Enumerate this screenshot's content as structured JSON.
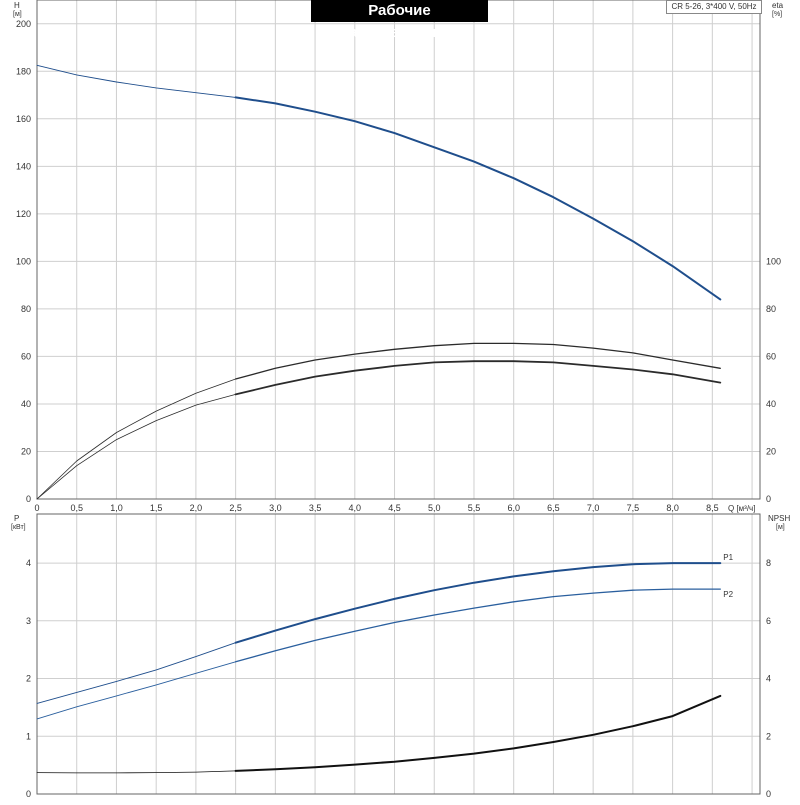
{
  "title": "Рабочие характеристики",
  "model_label": "CR 5-26, 3*400 V, 50Hz",
  "colors": {
    "head": "#1f4e8c",
    "eta": "#2b2b2b",
    "power_p1": "#1f4e8c",
    "power_p2": "#2a5f9e",
    "npsh": "#111111",
    "grid": "#cfcfcf",
    "axis": "#666666"
  },
  "chart_data": [
    {
      "type": "line",
      "panel": "top",
      "left_axis": {
        "label": "H",
        "unit": "[м]",
        "ylim": [
          0,
          210
        ],
        "ticks": [
          "0",
          "20",
          "40",
          "60",
          "80",
          "100",
          "120",
          "140",
          "160",
          "180",
          "200"
        ]
      },
      "right_axis": {
        "label": "eta",
        "unit": "[%]",
        "ylim": [
          0,
          210
        ],
        "ticks": [
          "0",
          "20",
          "40",
          "60",
          "80",
          "100"
        ]
      },
      "x_axis": {
        "label": "Q [м³/ч]",
        "xlim": [
          0,
          9.1
        ],
        "ticks": [
          "0",
          "0,5",
          "1,0",
          "1,5",
          "2,0",
          "2,5",
          "3,0",
          "3,5",
          "4,0",
          "4,5",
          "5,0",
          "5,5",
          "6,0",
          "6,5",
          "7,0",
          "7,5",
          "8,0",
          "8,5"
        ]
      },
      "grid": true,
      "series": [
        {
          "key": "H",
          "bold_from": 2.5,
          "x": [
            0,
            0.5,
            1.0,
            1.5,
            2.0,
            2.5,
            3.0,
            3.5,
            4.0,
            4.5,
            5.0,
            5.5,
            6.0,
            6.5,
            7.0,
            7.5,
            8.0,
            8.6
          ],
          "y": [
            182.5,
            178.5,
            175.5,
            173,
            171,
            169,
            166.5,
            163,
            159,
            154,
            148,
            142,
            135,
            127,
            118,
            108.5,
            98,
            84
          ]
        },
        {
          "key": "eta_upper",
          "bold_from": 2.5,
          "x": [
            0,
            0.5,
            1.0,
            1.5,
            2.0,
            2.5,
            3.0,
            3.5,
            4.0,
            4.5,
            5.0,
            5.5,
            6.0,
            6.5,
            7.0,
            7.5,
            8.0,
            8.6
          ],
          "y": [
            0,
            16,
            28,
            37,
            44.5,
            50.5,
            55,
            58.5,
            61,
            63,
            64.5,
            65.5,
            65.5,
            65,
            63.5,
            61.5,
            58.5,
            55
          ]
        },
        {
          "key": "eta_lower",
          "bold_from": 2.5,
          "x": [
            0,
            0.5,
            1.0,
            1.5,
            2.0,
            2.5,
            3.0,
            3.5,
            4.0,
            4.5,
            5.0,
            5.5,
            6.0,
            6.5,
            7.0,
            7.5,
            8.0,
            8.6
          ],
          "y": [
            0,
            14,
            25,
            33,
            39.5,
            44,
            48,
            51.5,
            54,
            56,
            57.5,
            58,
            58,
            57.5,
            56,
            54.5,
            52.5,
            49
          ]
        }
      ]
    },
    {
      "type": "line",
      "panel": "bottom",
      "left_axis": {
        "label": "P",
        "unit": "[кВт]",
        "ylim": [
          0,
          4.85
        ],
        "ticks": [
          "0",
          "1",
          "2",
          "3",
          "4"
        ]
      },
      "right_axis": {
        "label": "NPSH",
        "unit": "[м]",
        "ylim": [
          0,
          9.7
        ],
        "ticks": [
          "0",
          "2",
          "4",
          "6",
          "8"
        ]
      },
      "x_axis": {
        "xlim": [
          0,
          9.1
        ]
      },
      "grid": true,
      "series": [
        {
          "key": "P1",
          "name": "P1",
          "bold_from": 2.5,
          "axis": "left",
          "x": [
            0,
            0.5,
            1.0,
            1.5,
            2.0,
            2.5,
            3.0,
            3.5,
            4.0,
            4.5,
            5.0,
            5.5,
            6.0,
            6.5,
            7.0,
            7.5,
            8.0,
            8.6
          ],
          "y": [
            1.57,
            1.76,
            1.95,
            2.15,
            2.38,
            2.62,
            2.83,
            3.03,
            3.21,
            3.38,
            3.53,
            3.66,
            3.77,
            3.86,
            3.93,
            3.98,
            4.0,
            4.0
          ]
        },
        {
          "key": "P2",
          "name": "P2",
          "bold_from": 2.5,
          "axis": "left",
          "x": [
            0,
            0.5,
            1.0,
            1.5,
            2.0,
            2.5,
            3.0,
            3.5,
            4.0,
            4.5,
            5.0,
            5.5,
            6.0,
            6.5,
            7.0,
            7.5,
            8.0,
            8.6
          ],
          "y": [
            1.3,
            1.51,
            1.7,
            1.89,
            2.09,
            2.29,
            2.48,
            2.66,
            2.82,
            2.97,
            3.1,
            3.22,
            3.33,
            3.42,
            3.48,
            3.53,
            3.55,
            3.55
          ]
        },
        {
          "key": "NPSH",
          "bold_from": 2.5,
          "axis": "right",
          "x": [
            0,
            0.5,
            1.0,
            1.5,
            2.0,
            2.5,
            3.0,
            3.5,
            4.0,
            4.5,
            5.0,
            5.5,
            6.0,
            6.5,
            7.0,
            7.5,
            8.0,
            8.6
          ],
          "y": [
            0.74,
            0.73,
            0.73,
            0.74,
            0.76,
            0.8,
            0.86,
            0.93,
            1.02,
            1.12,
            1.25,
            1.4,
            1.58,
            1.8,
            2.05,
            2.35,
            2.7,
            3.4
          ]
        }
      ]
    }
  ]
}
